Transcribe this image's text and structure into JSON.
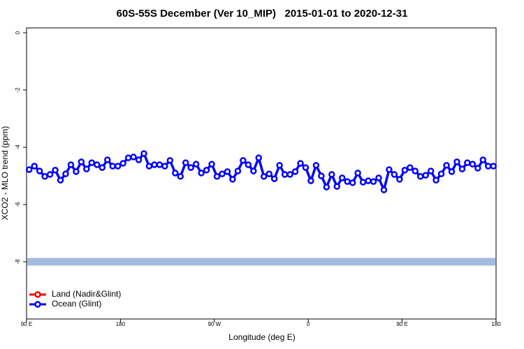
{
  "chart_data": {
    "type": "line",
    "title": "60S-55S December (Ver 10_MIP)   2015-01-01 to 2020-12-31",
    "x_label": "Longitude (deg E)",
    "y_label": "XCO2 - MLO trend (ppm)",
    "xlim": [
      90,
      540
    ],
    "ylim": [
      -10,
      0.17
    ],
    "xticks": [
      {
        "value": 90,
        "label": "90 E"
      },
      180,
      {
        "value": 270,
        "label": "90 W"
      },
      {
        "value": 360,
        "label": "0"
      },
      {
        "value": 450,
        "label": "90 E"
      },
      {
        "value": 540,
        "label": "180"
      }
    ],
    "yticks": [
      0,
      -2,
      -4,
      -6,
      -8
    ],
    "legend": "bottom-left",
    "band": {
      "y": -8,
      "color": "#a3bbdd"
    },
    "x": [
      92.5,
      97.5,
      102.5,
      107.5,
      112.5,
      117.5,
      122.5,
      127.5,
      132.5,
      137.5,
      142.5,
      147.5,
      152.5,
      157.5,
      162.5,
      167.5,
      172.5,
      177.5,
      182.5,
      187.5,
      192.5,
      197.5,
      202.5,
      207.5,
      212.5,
      217.5,
      222.5,
      227.5,
      232.5,
      237.5,
      242.5,
      247.5,
      252.5,
      257.5,
      262.5,
      267.5,
      272.5,
      277.5,
      282.5,
      287.5,
      292.5,
      297.5,
      302.5,
      307.5,
      312.5,
      317.5,
      322.5,
      327.5,
      332.5,
      337.5,
      342.5,
      347.5,
      352.5,
      357.5,
      362.5,
      367.5,
      372.5,
      377.5,
      382.5,
      387.5,
      392.5,
      397.5,
      402.5,
      407.5,
      412.5,
      417.5,
      422.5,
      427.5,
      432.5,
      437.5,
      442.5,
      447.5,
      452.5,
      457.5,
      462.5,
      467.5,
      472.5,
      477.5,
      482.5,
      487.5,
      492.5,
      497.5,
      502.5,
      507.5,
      512.5,
      517.5,
      522.5,
      527.5,
      532.5,
      537.5
    ],
    "series": [
      {
        "name": "Land (Nadir&Glint)",
        "color": "#ff0000",
        "values": [
          null,
          null,
          null,
          null,
          null,
          null,
          null,
          null,
          null,
          null,
          null,
          null,
          null,
          null,
          null,
          null,
          null,
          null,
          null,
          null,
          null,
          null,
          null,
          null,
          null,
          null,
          null,
          null,
          null,
          null,
          null,
          null,
          null,
          null,
          null,
          null,
          null,
          null,
          null,
          null,
          null,
          null,
          null,
          null,
          null,
          null,
          null,
          null,
          null,
          null,
          null,
          null,
          null,
          null,
          null,
          null,
          null,
          null,
          null,
          null,
          null,
          null,
          null,
          null,
          null,
          null,
          null,
          null,
          null,
          null,
          null,
          null,
          null,
          null,
          null,
          null,
          null,
          null,
          null,
          null,
          null,
          null,
          null,
          null,
          null,
          null,
          null,
          null,
          null,
          null
        ]
      },
      {
        "name": "Ocean (Glint)",
        "color": "#0000ff",
        "values": [
          -4.78,
          -4.66,
          -4.83,
          -5.02,
          -4.95,
          -4.8,
          -5.15,
          -4.93,
          -4.61,
          -4.85,
          -4.51,
          -4.76,
          -4.54,
          -4.61,
          -4.71,
          -4.44,
          -4.66,
          -4.66,
          -4.56,
          -4.37,
          -4.34,
          -4.44,
          -4.22,
          -4.66,
          -4.61,
          -4.61,
          -4.66,
          -4.46,
          -4.9,
          -5.02,
          -4.54,
          -4.71,
          -4.59,
          -4.9,
          -4.8,
          -4.59,
          -5.02,
          -4.93,
          -4.85,
          -5.12,
          -4.83,
          -4.46,
          -4.61,
          -4.83,
          -4.37,
          -5.02,
          -4.93,
          -5.1,
          -4.63,
          -4.95,
          -4.95,
          -4.85,
          -4.56,
          -4.71,
          -5.17,
          -4.63,
          -5.0,
          -5.39,
          -4.95,
          -5.37,
          -5.07,
          -5.2,
          -5.24,
          -4.9,
          -5.22,
          -5.17,
          -5.2,
          -5.07,
          -5.49,
          -4.78,
          -4.95,
          -5.12,
          -4.8,
          -4.71,
          -4.83,
          -5.02,
          -4.98,
          -4.83,
          -5.15,
          -4.93,
          -4.63,
          -4.85,
          -4.51,
          -4.76,
          -4.54,
          -4.59,
          -4.73,
          -4.44,
          -4.66,
          -4.66
        ]
      }
    ]
  }
}
